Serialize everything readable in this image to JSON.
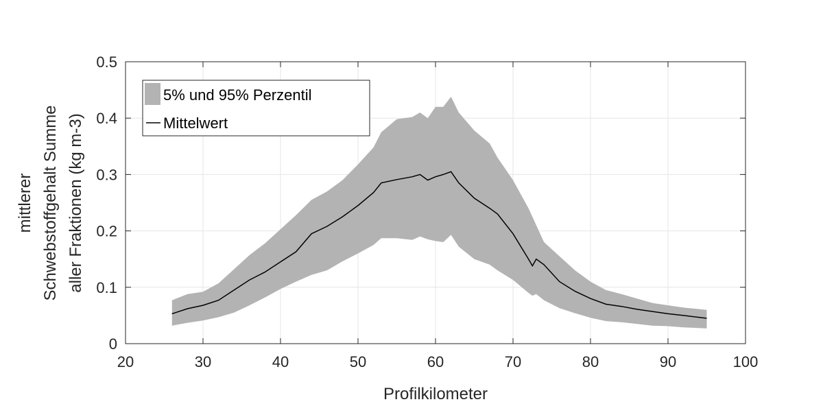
{
  "chart_data": {
    "type": "area",
    "title": "",
    "xlabel": "Profilkilometer",
    "ylabel_lines": [
      "mittlerer",
      "Schwebstoffgehalt Summe",
      "aller Fraktionen (kg m-3)"
    ],
    "xlim": [
      20,
      100
    ],
    "ylim": [
      0,
      0.5
    ],
    "xticks": [
      20,
      30,
      40,
      50,
      60,
      70,
      80,
      90,
      100
    ],
    "xtick_labels": [
      "20",
      "30",
      "40",
      "50",
      "60",
      "70",
      "80",
      "90",
      "100"
    ],
    "yticks": [
      0,
      0.1,
      0.2,
      0.3,
      0.4,
      0.5
    ],
    "ytick_labels": [
      "0",
      "0.1",
      "0.2",
      "0.3",
      "0.4",
      "0.5"
    ],
    "grid": true,
    "legend_position": "top-left",
    "x": [
      26,
      28,
      30,
      32,
      34,
      36,
      38,
      40,
      42,
      44,
      46,
      48,
      50,
      52,
      53,
      55,
      57,
      58,
      59,
      60,
      61,
      62,
      63,
      65,
      67,
      68,
      70,
      72,
      72.5,
      73,
      74,
      76,
      78,
      80,
      82,
      84,
      86,
      88,
      90,
      92,
      95
    ],
    "series": [
      {
        "name": "5% und 95% Perzentil",
        "kind": "band",
        "color": "#b3b3b3",
        "upper": [
          0.077,
          0.088,
          0.092,
          0.107,
          0.132,
          0.157,
          0.178,
          0.203,
          0.228,
          0.255,
          0.27,
          0.29,
          0.318,
          0.348,
          0.375,
          0.398,
          0.402,
          0.41,
          0.4,
          0.42,
          0.42,
          0.438,
          0.41,
          0.378,
          0.355,
          0.33,
          0.29,
          0.24,
          0.225,
          0.21,
          0.18,
          0.155,
          0.13,
          0.11,
          0.095,
          0.088,
          0.08,
          0.072,
          0.068,
          0.064,
          0.06
        ],
        "lower": [
          0.032,
          0.037,
          0.041,
          0.047,
          0.055,
          0.068,
          0.082,
          0.097,
          0.11,
          0.122,
          0.13,
          0.146,
          0.16,
          0.175,
          0.187,
          0.187,
          0.184,
          0.19,
          0.185,
          0.182,
          0.18,
          0.193,
          0.172,
          0.15,
          0.14,
          0.13,
          0.113,
          0.09,
          0.085,
          0.088,
          0.077,
          0.063,
          0.054,
          0.046,
          0.04,
          0.038,
          0.035,
          0.032,
          0.031,
          0.029,
          0.027
        ]
      },
      {
        "name": "Mittelwert",
        "kind": "line",
        "color": "#000000",
        "values": [
          0.053,
          0.062,
          0.068,
          0.077,
          0.095,
          0.113,
          0.127,
          0.145,
          0.163,
          0.195,
          0.208,
          0.225,
          0.245,
          0.268,
          0.285,
          0.291,
          0.296,
          0.3,
          0.29,
          0.296,
          0.3,
          0.305,
          0.285,
          0.258,
          0.24,
          0.23,
          0.195,
          0.15,
          0.138,
          0.15,
          0.14,
          0.11,
          0.093,
          0.08,
          0.07,
          0.066,
          0.061,
          0.057,
          0.053,
          0.05,
          0.045
        ]
      }
    ]
  }
}
